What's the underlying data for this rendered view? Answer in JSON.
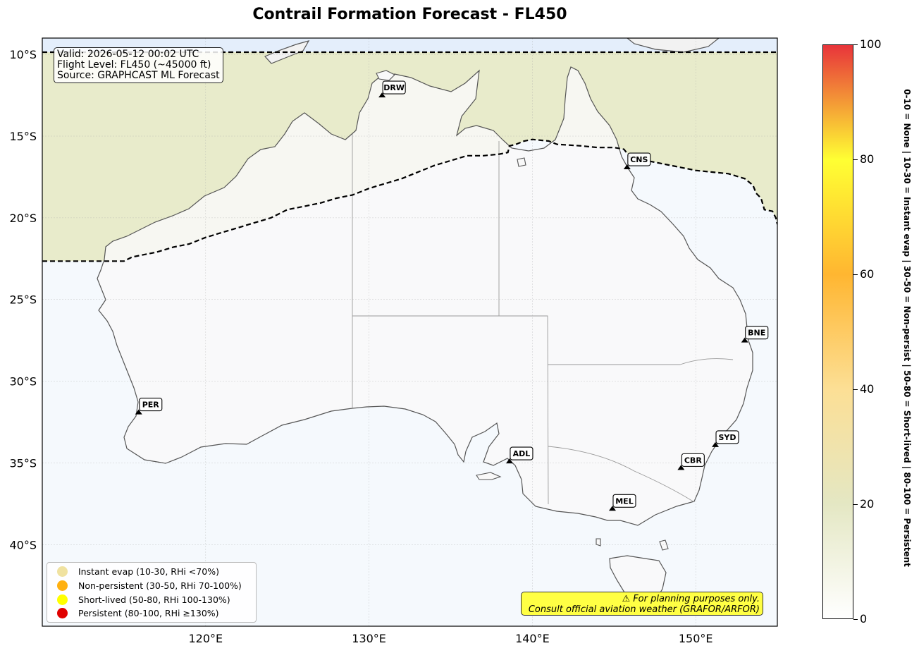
{
  "title": "Contrail Formation Forecast - FL450",
  "info": {
    "valid": "Valid: 2026-05-12 00:02 UTC",
    "flight_level": "Flight Level: FL450 (~45000 ft)",
    "source": "Source: GRAPHCAST ML Forecast"
  },
  "map": {
    "lon_range": [
      110,
      155
    ],
    "lat_range": [
      -45,
      -9
    ],
    "lat_ticks": [
      {
        "value": -10,
        "label": "10°S"
      },
      {
        "value": -15,
        "label": "15°S"
      },
      {
        "value": -20,
        "label": "20°S"
      },
      {
        "value": -25,
        "label": "25°S"
      },
      {
        "value": -30,
        "label": "30°S"
      },
      {
        "value": -35,
        "label": "35°S"
      },
      {
        "value": -40,
        "label": "40°S"
      }
    ],
    "lon_ticks": [
      {
        "value": 120,
        "label": "120°E"
      },
      {
        "value": 130,
        "label": "130°E"
      },
      {
        "value": 140,
        "label": "140°E"
      },
      {
        "value": 150,
        "label": "150°E"
      }
    ],
    "gridlines": true,
    "colors": {
      "ocean": "#f5f9fd",
      "land": "#f9f9f9",
      "north_band": "#e8ebcb",
      "top_strip": "#e4eefb"
    }
  },
  "airports": [
    {
      "code": "DRW",
      "lon": 130.8,
      "lat": -12.5
    },
    {
      "code": "CNS",
      "lon": 145.8,
      "lat": -16.9
    },
    {
      "code": "BNE",
      "lon": 153.0,
      "lat": -27.5
    },
    {
      "code": "PER",
      "lon": 115.9,
      "lat": -31.9
    },
    {
      "code": "ADL",
      "lon": 138.6,
      "lat": -34.9
    },
    {
      "code": "SYD",
      "lon": 151.2,
      "lat": -33.9
    },
    {
      "code": "CBR",
      "lon": 149.1,
      "lat": -35.3
    },
    {
      "code": "MEL",
      "lon": 144.9,
      "lat": -37.8
    }
  ],
  "contour_boundary": [
    [
      110,
      -22.65
    ],
    [
      115,
      -22.65
    ],
    [
      115.5,
      -22.4
    ],
    [
      117,
      -22.1
    ],
    [
      118,
      -21.8
    ],
    [
      119,
      -21.6
    ],
    [
      120,
      -21.2
    ],
    [
      121,
      -20.9
    ],
    [
      122,
      -20.6
    ],
    [
      123,
      -20.3
    ],
    [
      124,
      -20.0
    ],
    [
      125,
      -19.5
    ],
    [
      126,
      -19.3
    ],
    [
      127,
      -19.1
    ],
    [
      128,
      -18.8
    ],
    [
      129,
      -18.6
    ],
    [
      130,
      -18.2
    ],
    [
      131,
      -17.9
    ],
    [
      132,
      -17.6
    ],
    [
      133,
      -17.2
    ],
    [
      134,
      -16.8
    ],
    [
      135,
      -16.5
    ],
    [
      136,
      -16.2
    ],
    [
      137,
      -16.2
    ],
    [
      138,
      -16.1
    ],
    [
      138.5,
      -16.0
    ],
    [
      138.6,
      -15.6
    ],
    [
      139,
      -15.5
    ],
    [
      139.5,
      -15.3
    ],
    [
      140,
      -15.2
    ],
    [
      141,
      -15.3
    ],
    [
      141.5,
      -15.5
    ],
    [
      143,
      -15.6
    ],
    [
      144,
      -15.7
    ],
    [
      145,
      -15.7
    ],
    [
      145.6,
      -15.8
    ],
    [
      146,
      -16.3
    ],
    [
      147,
      -16.5
    ],
    [
      148,
      -16.7
    ],
    [
      149,
      -16.9
    ],
    [
      150,
      -17.1
    ],
    [
      151,
      -17.2
    ],
    [
      152,
      -17.3
    ],
    [
      153,
      -17.6
    ],
    [
      153.5,
      -18.0
    ],
    [
      153.7,
      -18.5
    ],
    [
      154,
      -18.8
    ],
    [
      154.2,
      -19.5
    ],
    [
      154.7,
      -19.6
    ],
    [
      154.9,
      -20.0
    ],
    [
      155,
      -20.4
    ]
  ],
  "legend": [
    {
      "label": "Instant evap (10-30, RHi <70%)",
      "color": "#f0e2a0"
    },
    {
      "label": "Non-persistent (30-50, RHi 70-100%)",
      "color": "#ffb010"
    },
    {
      "label": "Short-lived (50-80, RHi 100-130%)",
      "color": "#ffff00"
    },
    {
      "label": "Persistent (80-100, RHi ≥130%)",
      "color": "#e00000"
    }
  ],
  "warning": {
    "line1": "⚠ For planning purposes only.",
    "line2": "Consult official aviation weather (GRAFOR/ARFOR)"
  },
  "colorbar": {
    "min": 0,
    "max": 100,
    "ticks": [
      {
        "value": 0,
        "label": "0"
      },
      {
        "value": 20,
        "label": "20"
      },
      {
        "value": 40,
        "label": "40"
      },
      {
        "value": 60,
        "label": "60"
      },
      {
        "value": 80,
        "label": "80"
      },
      {
        "value": 100,
        "label": "100"
      }
    ],
    "stops": [
      {
        "value": 0,
        "color": "#ffffff"
      },
      {
        "value": 20,
        "color": "#e4e7c3"
      },
      {
        "value": 40,
        "color": "#fcdf95"
      },
      {
        "value": 60,
        "color": "#ffb631"
      },
      {
        "value": 80,
        "color": "#ffff33"
      },
      {
        "value": 100,
        "color": "#e8343a"
      }
    ],
    "label": "0-10 = None  |  10-30 = Instant evap  |  30-50 = Non-persist  |  50-80 = Short-lived  |  80-100 = Persistent"
  }
}
